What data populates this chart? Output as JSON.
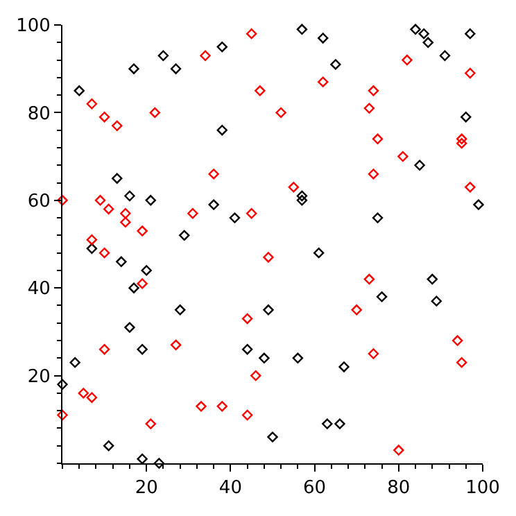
{
  "chart_data": {
    "type": "scatter",
    "marker": "diamond",
    "xlim": [
      0,
      100
    ],
    "ylim": [
      0,
      100
    ],
    "xticks": [
      20,
      40,
      60,
      80,
      100
    ],
    "yticks": [
      20,
      40,
      60,
      80,
      100
    ],
    "series": [
      {
        "color": "#000000",
        "x": [
          4,
          17,
          24,
          27,
          38,
          38,
          57,
          62,
          65,
          84,
          86,
          87,
          97,
          91,
          96,
          85,
          57,
          57,
          75,
          99,
          61,
          13,
          16,
          21,
          7,
          36,
          29,
          41,
          0,
          3,
          14,
          20,
          17,
          16,
          19,
          11,
          19,
          23,
          28,
          44,
          48,
          49,
          50,
          56,
          66,
          63,
          67,
          76,
          88,
          89
        ],
        "values": [
          85,
          90,
          93,
          90,
          95,
          76,
          99,
          97,
          91,
          99,
          98,
          96,
          98,
          93,
          79,
          68,
          61,
          60,
          56,
          59,
          48,
          65,
          61,
          60,
          49,
          59,
          52,
          56,
          18,
          23,
          46,
          44,
          40,
          31,
          26,
          4,
          1,
          0,
          35,
          26,
          24,
          35,
          6,
          24,
          9,
          9,
          22,
          38,
          42,
          37
        ]
      },
      {
        "color": "#ff0000",
        "x": [
          7,
          10,
          13,
          22,
          34,
          45,
          47,
          62,
          74,
          73,
          52,
          82,
          97,
          95,
          95,
          75,
          81,
          74,
          55,
          97,
          49,
          0,
          9,
          11,
          15,
          15,
          19,
          7,
          10,
          36,
          31,
          45,
          0,
          5,
          7,
          19,
          10,
          21,
          27,
          33,
          38,
          44,
          44,
          46,
          70,
          73,
          74,
          80,
          94,
          95
        ],
        "values": [
          82,
          79,
          77,
          80,
          93,
          98,
          85,
          87,
          85,
          81,
          80,
          92,
          89,
          74,
          73,
          74,
          70,
          66,
          63,
          63,
          47,
          60,
          60,
          58,
          57,
          55,
          53,
          51,
          48,
          66,
          57,
          57,
          11,
          16,
          15,
          41,
          26,
          9,
          27,
          13,
          13,
          33,
          11,
          20,
          35,
          42,
          25,
          3,
          28,
          23
        ]
      }
    ]
  }
}
